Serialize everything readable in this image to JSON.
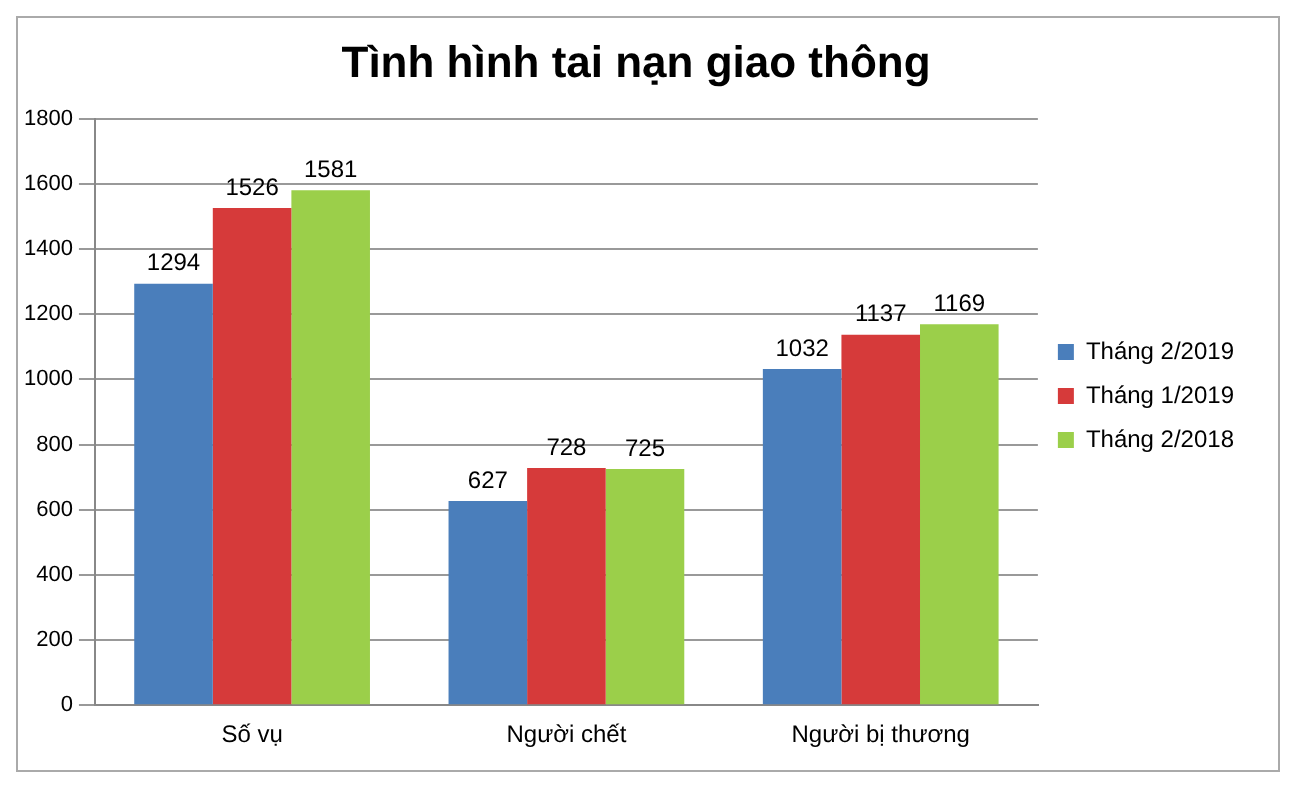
{
  "chart_data": {
    "type": "bar",
    "title": "Tình hình tai nạn giao thông",
    "categories": [
      "Số vụ",
      "Người chết",
      "Người bị thương"
    ],
    "series": [
      {
        "name": "Tháng 2/2019",
        "color": "#4a7ebb",
        "values": [
          1294,
          627,
          1032
        ]
      },
      {
        "name": "Tháng 1/2019",
        "color": "#d63a3a",
        "values": [
          1526,
          728,
          1137
        ]
      },
      {
        "name": "Tháng 2/2018",
        "color": "#9bcf4a",
        "values": [
          1581,
          725,
          1169
        ]
      }
    ],
    "ylim": [
      0,
      1800
    ],
    "yticks": [
      0,
      200,
      400,
      600,
      800,
      1000,
      1200,
      1400,
      1600,
      1800
    ],
    "grid": "y",
    "legend": "right",
    "data_labels": true
  }
}
